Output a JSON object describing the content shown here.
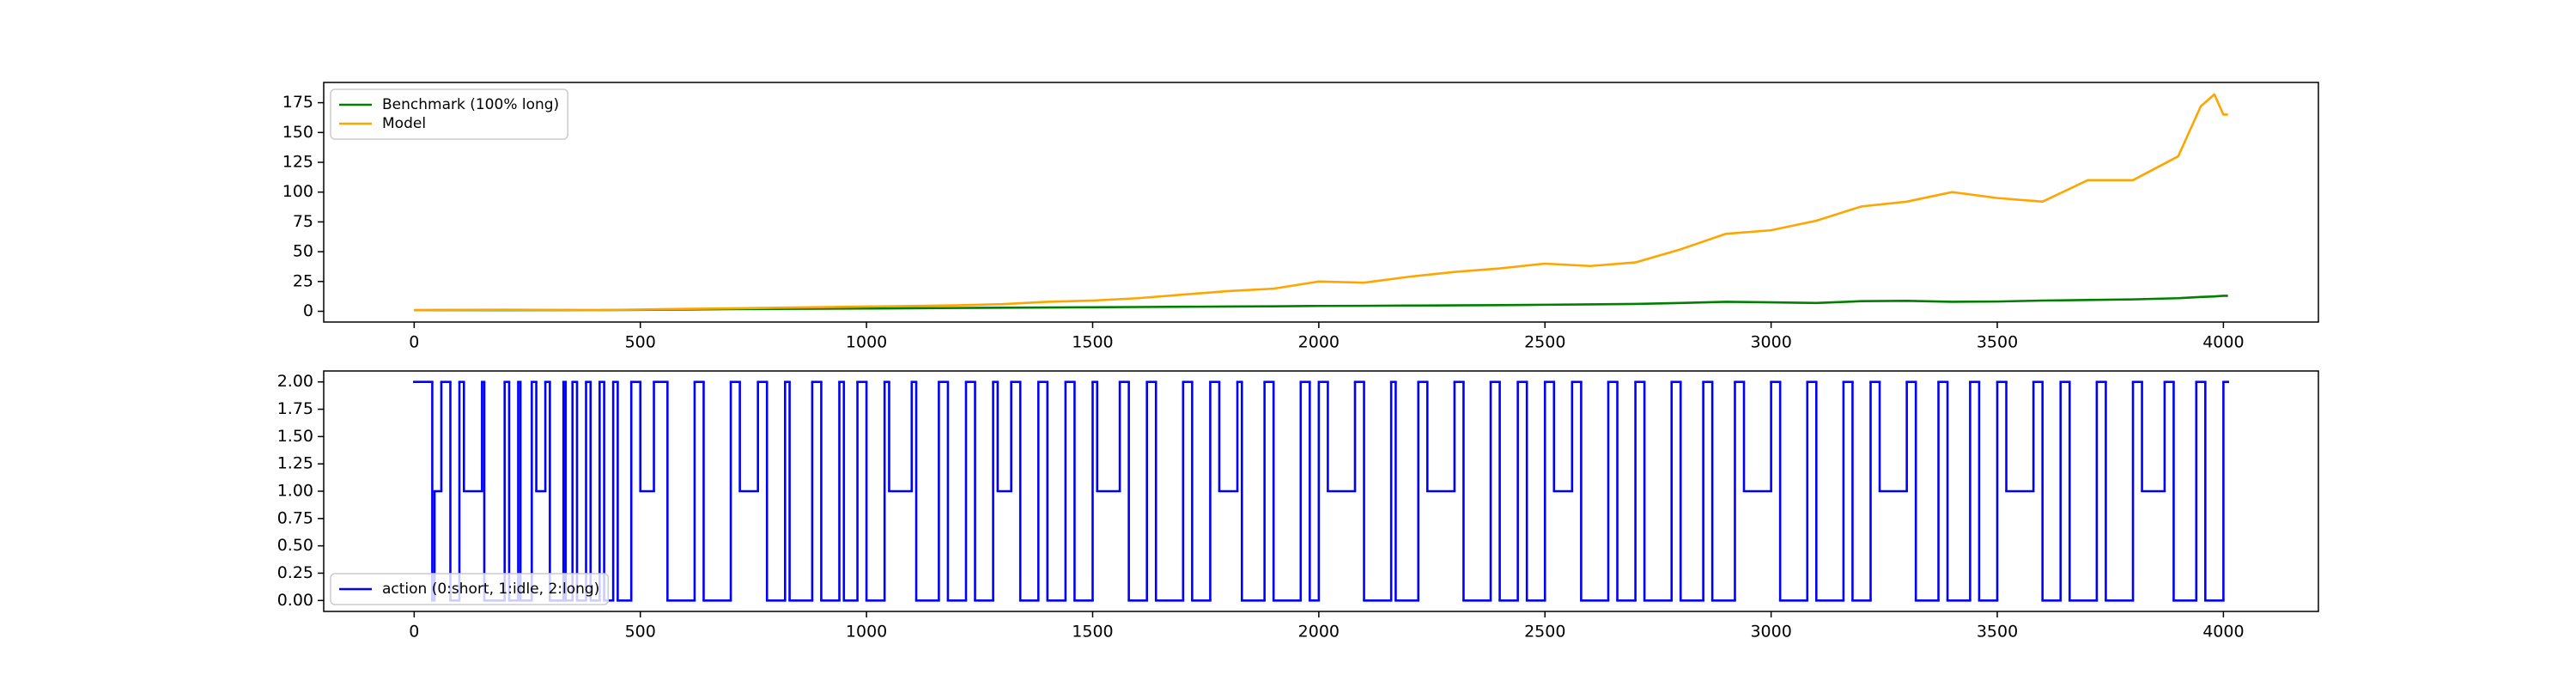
{
  "chart_data": [
    {
      "type": "line",
      "x": [
        0,
        100,
        200,
        300,
        400,
        500,
        600,
        700,
        800,
        900,
        1000,
        1100,
        1200,
        1300,
        1400,
        1500,
        1600,
        1700,
        1800,
        1900,
        2000,
        2100,
        2200,
        2300,
        2400,
        2500,
        2600,
        2700,
        2800,
        2900,
        3000,
        3100,
        3200,
        3300,
        3400,
        3500,
        3600,
        3700,
        3800,
        3900,
        3950,
        3980,
        4000,
        4010
      ],
      "series": [
        {
          "name": "Benchmark (100% long)",
          "color": "green",
          "values": [
            1,
            1,
            1,
            1,
            1,
            1.2,
            1.5,
            1.8,
            2,
            2.2,
            2.4,
            2.6,
            2.8,
            3,
            3.2,
            3.4,
            3.6,
            3.8,
            4,
            4.2,
            4.5,
            4.6,
            4.8,
            5,
            5.2,
            5.5,
            5.8,
            6.2,
            7,
            8,
            7.5,
            7,
            8.5,
            8.8,
            8,
            8.2,
            9,
            9.5,
            10,
            11,
            12,
            12.5,
            13,
            13
          ]
        },
        {
          "name": "Model",
          "color": "orange",
          "values": [
            1,
            1.2,
            1.3,
            1.2,
            1,
            1.5,
            2,
            2.5,
            3,
            3.5,
            4,
            4.5,
            5,
            6,
            8,
            9,
            11,
            14,
            17,
            19,
            25,
            24,
            29,
            33,
            36,
            40,
            38,
            41,
            52,
            65,
            68,
            76,
            88,
            92,
            100,
            95,
            92,
            110,
            110,
            130,
            172,
            182,
            165,
            165
          ]
        }
      ],
      "xlim": [
        -200,
        4210
      ],
      "ylim": [
        -9,
        192
      ],
      "xticks": [
        0,
        500,
        1000,
        1500,
        2000,
        2500,
        3000,
        3500,
        4000
      ],
      "yticks": [
        0,
        25,
        50,
        75,
        100,
        125,
        150,
        175
      ],
      "legend": "upper left"
    },
    {
      "type": "line",
      "drawstyle": "steps",
      "x": [
        0,
        40,
        45,
        60,
        80,
        100,
        110,
        150,
        155,
        200,
        210,
        230,
        235,
        260,
        270,
        290,
        300,
        330,
        335,
        350,
        360,
        380,
        390,
        410,
        420,
        440,
        450,
        480,
        500,
        530,
        560,
        620,
        640,
        700,
        720,
        760,
        780,
        820,
        830,
        880,
        900,
        940,
        950,
        980,
        1000,
        1040,
        1050,
        1100,
        1110,
        1160,
        1180,
        1220,
        1240,
        1280,
        1290,
        1320,
        1340,
        1380,
        1400,
        1440,
        1460,
        1500,
        1510,
        1560,
        1580,
        1620,
        1640,
        1700,
        1720,
        1760,
        1780,
        1820,
        1830,
        1880,
        1900,
        1960,
        1980,
        2000,
        2020,
        2080,
        2100,
        2160,
        2170,
        2220,
        2240,
        2300,
        2320,
        2380,
        2400,
        2440,
        2460,
        2500,
        2520,
        2560,
        2580,
        2640,
        2660,
        2700,
        2720,
        2780,
        2800,
        2850,
        2870,
        2920,
        2940,
        3000,
        3020,
        3080,
        3100,
        3160,
        3180,
        3220,
        3240,
        3300,
        3320,
        3370,
        3390,
        3440,
        3460,
        3500,
        3520,
        3580,
        3600,
        3640,
        3660,
        3720,
        3740,
        3800,
        3820,
        3870,
        3890,
        3940,
        3960,
        4000,
        4010
      ],
      "series": [
        {
          "name": "action (0:short, 1:idle, 2:long)",
          "color": "blue",
          "values": [
            2,
            0,
            1,
            2,
            0,
            2,
            1,
            2,
            0,
            2,
            0,
            2,
            0,
            2,
            1,
            2,
            0,
            2,
            0,
            2,
            0,
            2,
            0,
            2,
            0,
            2,
            0,
            2,
            1,
            2,
            0,
            2,
            0,
            2,
            1,
            2,
            0,
            2,
            0,
            2,
            0,
            2,
            0,
            2,
            0,
            2,
            1,
            2,
            0,
            2,
            0,
            2,
            0,
            2,
            1,
            2,
            0,
            2,
            0,
            2,
            0,
            2,
            1,
            2,
            0,
            2,
            0,
            2,
            0,
            2,
            1,
            2,
            0,
            2,
            0,
            2,
            0,
            2,
            1,
            2,
            0,
            2,
            0,
            2,
            1,
            2,
            0,
            2,
            0,
            2,
            0,
            2,
            1,
            2,
            0,
            2,
            0,
            2,
            0,
            2,
            0,
            2,
            0,
            2,
            1,
            2,
            0,
            2,
            0,
            2,
            0,
            2,
            1,
            2,
            0,
            2,
            0,
            2,
            0,
            2,
            1,
            2,
            0,
            2,
            0,
            2,
            0,
            2,
            1,
            2,
            0,
            2,
            0,
            2,
            2
          ]
        }
      ],
      "xlim": [
        -200,
        4210
      ],
      "ylim": [
        -0.1,
        2.1
      ],
      "xticks": [
        0,
        500,
        1000,
        1500,
        2000,
        2500,
        3000,
        3500,
        4000
      ],
      "yticks": [
        {
          "value": 0,
          "label": "0.00"
        },
        {
          "value": 0.25,
          "label": "0.25"
        },
        {
          "value": 0.5,
          "label": "0.50"
        },
        {
          "value": 0.75,
          "label": "0.75"
        },
        {
          "value": 1,
          "label": "1.00"
        },
        {
          "value": 1.25,
          "label": "1.25"
        },
        {
          "value": 1.5,
          "label": "1.50"
        },
        {
          "value": 1.75,
          "label": "1.75"
        },
        {
          "value": 2,
          "label": "2.00"
        }
      ],
      "legend": "lower left"
    }
  ]
}
